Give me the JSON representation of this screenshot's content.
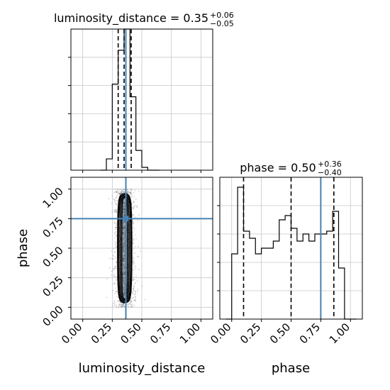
{
  "colors": {
    "truth": "#4682b4",
    "hist": "#000000",
    "grid": "#c8c8c8",
    "points": "#000000"
  },
  "chart_data": [
    {
      "type": "histogram",
      "panel": "top-left",
      "title": {
        "main": "luminosity_distance = 0.35",
        "upper": "+0.06",
        "lower": "−0.05"
      },
      "xlim": [
        -0.1,
        1.1
      ],
      "ylim": [
        0,
        1.0
      ],
      "grid": true,
      "x_ticks": [
        0.0,
        0.25,
        0.5,
        0.75,
        1.0
      ],
      "y_ticks": [
        0.2,
        0.4,
        0.6,
        0.8
      ],
      "bin_edges": [
        0.15,
        0.2,
        0.25,
        0.3,
        0.35,
        0.4,
        0.45,
        0.5,
        0.55,
        0.6,
        0.65
      ],
      "counts": [
        0.0,
        0.08,
        0.61,
        0.85,
        1.0,
        0.52,
        0.14,
        0.02,
        0.0,
        0.0
      ],
      "quantiles": [
        0.3,
        0.35,
        0.41
      ],
      "truth": 0.365
    },
    {
      "type": "histogram",
      "panel": "bottom-right",
      "title": {
        "main": "phase = 0.50",
        "upper": "+0.36",
        "lower": "−0.40"
      },
      "xlim": [
        -0.1,
        1.1
      ],
      "ylim": [
        0,
        1.0
      ],
      "grid": true,
      "x_ticks": [
        0.0,
        0.25,
        0.5,
        0.75,
        1.0
      ],
      "x_tick_labels": [
        "0.00",
        "0.25",
        "0.50",
        "0.75",
        "1.00"
      ],
      "y_ticks": [
        0.2,
        0.4,
        0.6,
        0.8
      ],
      "xlabel": "phase",
      "bin_edges": [
        -0.05,
        0.0,
        0.05,
        0.1,
        0.15,
        0.2,
        0.25,
        0.3,
        0.35,
        0.4,
        0.45,
        0.5,
        0.55,
        0.6,
        0.65,
        0.7,
        0.75,
        0.8,
        0.85,
        0.9,
        0.95,
        1.0,
        1.05
      ],
      "counts": [
        0.0,
        0.46,
        0.93,
        0.62,
        0.57,
        0.46,
        0.5,
        0.5,
        0.55,
        0.7,
        0.73,
        0.64,
        0.55,
        0.6,
        0.55,
        0.6,
        0.6,
        0.62,
        0.76,
        0.36,
        0.0,
        0.0
      ],
      "quantiles": [
        0.1,
        0.5,
        0.86
      ],
      "truth": 0.75
    },
    {
      "type": "scatter",
      "panel": "bottom-left",
      "xlim": [
        -0.1,
        1.1
      ],
      "ylim": [
        -0.1,
        1.1
      ],
      "grid": true,
      "x_ticks": [
        0.0,
        0.25,
        0.5,
        0.75,
        1.0
      ],
      "x_tick_labels": [
        "0.00",
        "0.25",
        "0.50",
        "0.75",
        "1.00"
      ],
      "y_ticks": [
        0.0,
        0.25,
        0.5,
        0.75,
        1.0
      ],
      "y_tick_labels": [
        "0.00",
        "0.25",
        "0.50",
        "0.75",
        "1.00"
      ],
      "xlabel": "luminosity_distance",
      "ylabel": "phase",
      "x_center": 0.355,
      "x_spread": 0.045,
      "y_range": [
        0.0,
        1.0
      ],
      "truth": [
        0.365,
        0.75
      ],
      "contour_widths": [
        0.12,
        0.1,
        0.075,
        0.05
      ],
      "contour_y_range": [
        0.04,
        0.96
      ]
    }
  ]
}
